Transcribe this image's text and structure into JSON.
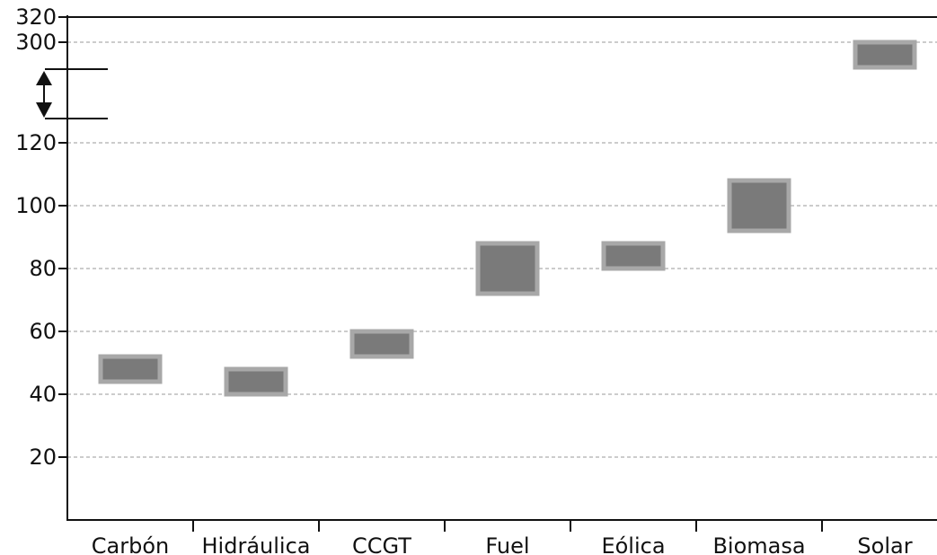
{
  "chart_data": {
    "type": "bar",
    "subtype": "floating-range",
    "title": "",
    "xlabel": "",
    "ylabel": "",
    "categories": [
      "Carbón",
      "Hidráulica",
      "CCGT",
      "Fuel",
      "Eólica",
      "Biomasa",
      "Solar"
    ],
    "ranges": [
      {
        "category": "Carbón",
        "low": 44,
        "high": 52
      },
      {
        "category": "Hidráulica",
        "low": 40,
        "high": 48
      },
      {
        "category": "CCGT",
        "low": 52,
        "high": 60
      },
      {
        "category": "Fuel",
        "low": 72,
        "high": 88
      },
      {
        "category": "Eólica",
        "low": 80,
        "high": 88
      },
      {
        "category": "Biomasa",
        "low": 92,
        "high": 108
      },
      {
        "category": "Solar",
        "low": 280,
        "high": 300
      }
    ],
    "y_ticks": [
      20,
      40,
      60,
      80,
      100,
      120,
      300,
      320
    ],
    "y_axis_break": {
      "from": 120,
      "to": 300
    },
    "ylim": [
      0,
      320
    ],
    "grid": true,
    "colors": {
      "bar_fill": "#7a7a7a",
      "bar_border": "#a8a8a8",
      "axis": "#111111",
      "grid": "#9a9a9a"
    }
  }
}
